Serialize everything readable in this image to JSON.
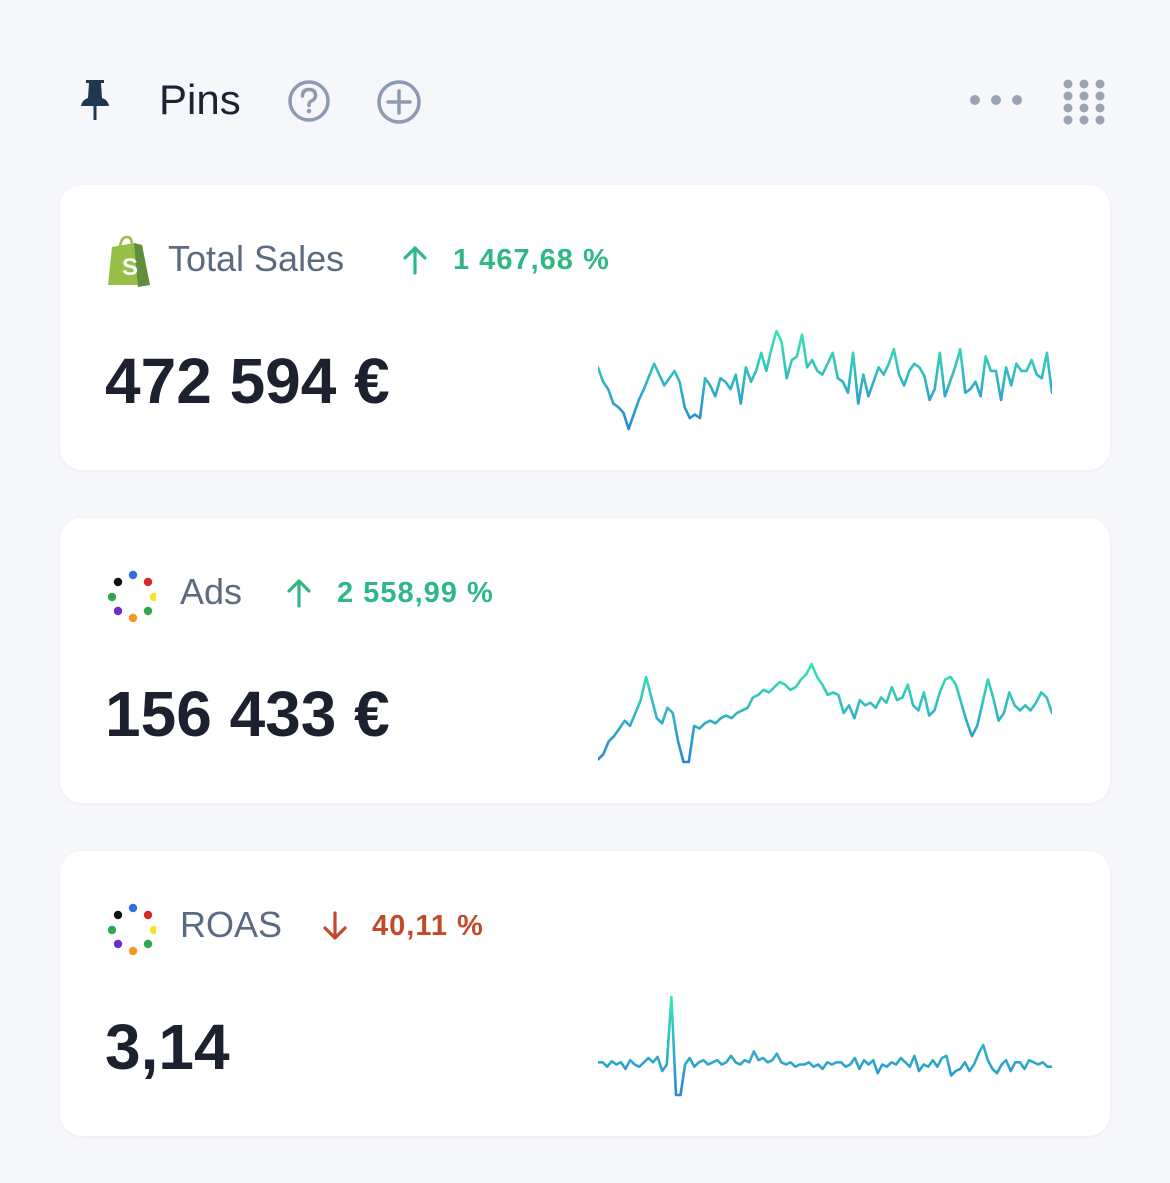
{
  "header": {
    "title": "Pins",
    "icons": [
      "pin-icon",
      "help-icon",
      "add-icon",
      "more-icon",
      "grid-icon"
    ]
  },
  "colors": {
    "positive": "#2fb784",
    "negative": "#c24a2c",
    "label": "#5b6b80",
    "icon_muted": "#8d9ab3",
    "spark_low": "#2a86d6",
    "spark_high": "#39e6b0"
  },
  "cards": [
    {
      "source_icon": "shopify-bag-icon",
      "label": "Total Sales",
      "trend": "up",
      "delta": "1 467,68 %",
      "value": "472 594 €",
      "sparkline": [
        30,
        22,
        18,
        10,
        8,
        5,
        -4,
        4,
        12,
        18,
        25,
        32,
        26,
        20,
        24,
        28,
        22,
        8,
        2,
        4,
        2,
        24,
        20,
        14,
        24,
        22,
        18,
        26,
        10,
        30,
        22,
        28,
        38,
        28,
        40,
        50,
        44,
        24,
        34,
        36,
        48,
        30,
        34,
        28,
        26,
        32,
        38,
        24,
        22,
        16,
        38,
        10,
        26,
        14,
        22,
        30,
        26,
        32,
        40,
        26,
        20,
        28,
        32,
        30,
        25,
        12,
        18,
        38,
        14,
        22,
        30,
        40,
        16,
        18,
        22,
        14,
        36,
        28,
        28,
        12,
        30,
        20,
        32,
        28,
        28,
        34,
        26,
        24,
        38,
        16
      ]
    },
    {
      "source_icon": "multicolor-dots-icon",
      "label": "Ads",
      "trend": "up",
      "delta": "2 558,99 %",
      "value": "156 433 €",
      "sparkline": [
        4,
        8,
        18,
        22,
        28,
        34,
        30,
        40,
        50,
        68,
        52,
        36,
        32,
        44,
        40,
        18,
        2,
        2,
        30,
        28,
        32,
        34,
        32,
        36,
        38,
        36,
        40,
        42,
        44,
        52,
        54,
        58,
        56,
        60,
        64,
        62,
        58,
        60,
        66,
        70,
        78,
        68,
        62,
        54,
        56,
        54,
        40,
        46,
        36,
        50,
        46,
        48,
        44,
        52,
        48,
        60,
        50,
        52,
        62,
        46,
        42,
        56,
        38,
        42,
        56,
        66,
        68,
        62,
        48,
        34,
        22,
        30,
        48,
        66,
        52,
        34,
        40,
        56,
        46,
        42,
        46,
        42,
        48,
        56,
        52,
        40
      ]
    },
    {
      "source_icon": "multicolor-dots-icon",
      "label": "ROAS",
      "trend": "down",
      "delta": "40,11 %",
      "value": "3,14",
      "sparkline": [
        30,
        30,
        26,
        31,
        28,
        30,
        24,
        32,
        28,
        26,
        30,
        34,
        30,
        35,
        22,
        28,
        90,
        0,
        0,
        28,
        34,
        26,
        30,
        32,
        28,
        30,
        32,
        28,
        30,
        36,
        30,
        28,
        32,
        30,
        40,
        32,
        34,
        30,
        32,
        38,
        30,
        28,
        30,
        26,
        28,
        28,
        30,
        26,
        28,
        24,
        30,
        28,
        30,
        30,
        26,
        28,
        34,
        24,
        32,
        28,
        32,
        20,
        28,
        26,
        30,
        28,
        34,
        30,
        26,
        36,
        22,
        28,
        26,
        32,
        26,
        34,
        36,
        18,
        22,
        24,
        30,
        22,
        28,
        38,
        46,
        32,
        24,
        20,
        28,
        32,
        22,
        30,
        30,
        24,
        32,
        30,
        28,
        30,
        26,
        26
      ]
    }
  ]
}
